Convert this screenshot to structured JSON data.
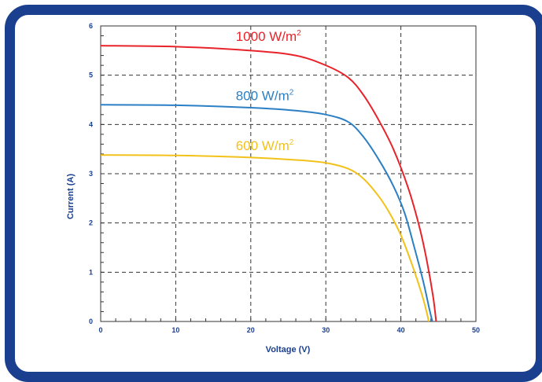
{
  "colors": {
    "frame": "#1b3f8f",
    "axis_text": "#1b3f8f",
    "grid": "#333333",
    "series_1000": "#e8232a",
    "series_800": "#2b7fc4",
    "series_600": "#f2c21a"
  },
  "chart_data": {
    "type": "line",
    "title": "",
    "xlabel": "Voltage (V)",
    "ylabel": "Current (A)",
    "xlim": [
      0,
      50
    ],
    "ylim": [
      0,
      6
    ],
    "x_ticks": [
      "0",
      "10",
      "20",
      "30",
      "40",
      "50"
    ],
    "y_ticks": [
      "0",
      "1",
      "2",
      "3",
      "4",
      "5",
      "6"
    ],
    "grid": true,
    "grid_style": "dashed",
    "legend": "inline labels above curves",
    "series": [
      {
        "name": "1000 W/m²",
        "label_main": "1000 W/m",
        "label_sup": "2",
        "color": "#e8232a",
        "points": [
          [
            0,
            5.6
          ],
          [
            10,
            5.58
          ],
          [
            20,
            5.5
          ],
          [
            26,
            5.4
          ],
          [
            30,
            5.2
          ],
          [
            33,
            4.95
          ],
          [
            35,
            4.6
          ],
          [
            37,
            4.1
          ],
          [
            39,
            3.5
          ],
          [
            41,
            2.7
          ],
          [
            42.5,
            1.9
          ],
          [
            43.5,
            1.2
          ],
          [
            44.3,
            0.5
          ],
          [
            44.7,
            0.0
          ]
        ]
      },
      {
        "name": "800 W/m²",
        "label_main": "800 W/m",
        "label_sup": "2",
        "color": "#2b7fc4",
        "points": [
          [
            0,
            4.4
          ],
          [
            10,
            4.39
          ],
          [
            20,
            4.34
          ],
          [
            26,
            4.28
          ],
          [
            30,
            4.2
          ],
          [
            33,
            4.05
          ],
          [
            35,
            3.75
          ],
          [
            37,
            3.3
          ],
          [
            39,
            2.75
          ],
          [
            40.5,
            2.2
          ],
          [
            41.8,
            1.5
          ],
          [
            43,
            0.8
          ],
          [
            43.8,
            0.25
          ],
          [
            44.2,
            0.0
          ]
        ]
      },
      {
        "name": "600 W/m²",
        "label_main": "600 W/m",
        "label_sup": "2",
        "color": "#f2c21a",
        "points": [
          [
            0,
            3.38
          ],
          [
            10,
            3.37
          ],
          [
            20,
            3.33
          ],
          [
            26,
            3.28
          ],
          [
            30,
            3.22
          ],
          [
            33,
            3.1
          ],
          [
            35,
            2.9
          ],
          [
            37,
            2.55
          ],
          [
            38.5,
            2.2
          ],
          [
            40,
            1.75
          ],
          [
            41.5,
            1.15
          ],
          [
            42.8,
            0.55
          ],
          [
            43.5,
            0.15
          ],
          [
            43.7,
            0.0
          ]
        ]
      }
    ]
  }
}
